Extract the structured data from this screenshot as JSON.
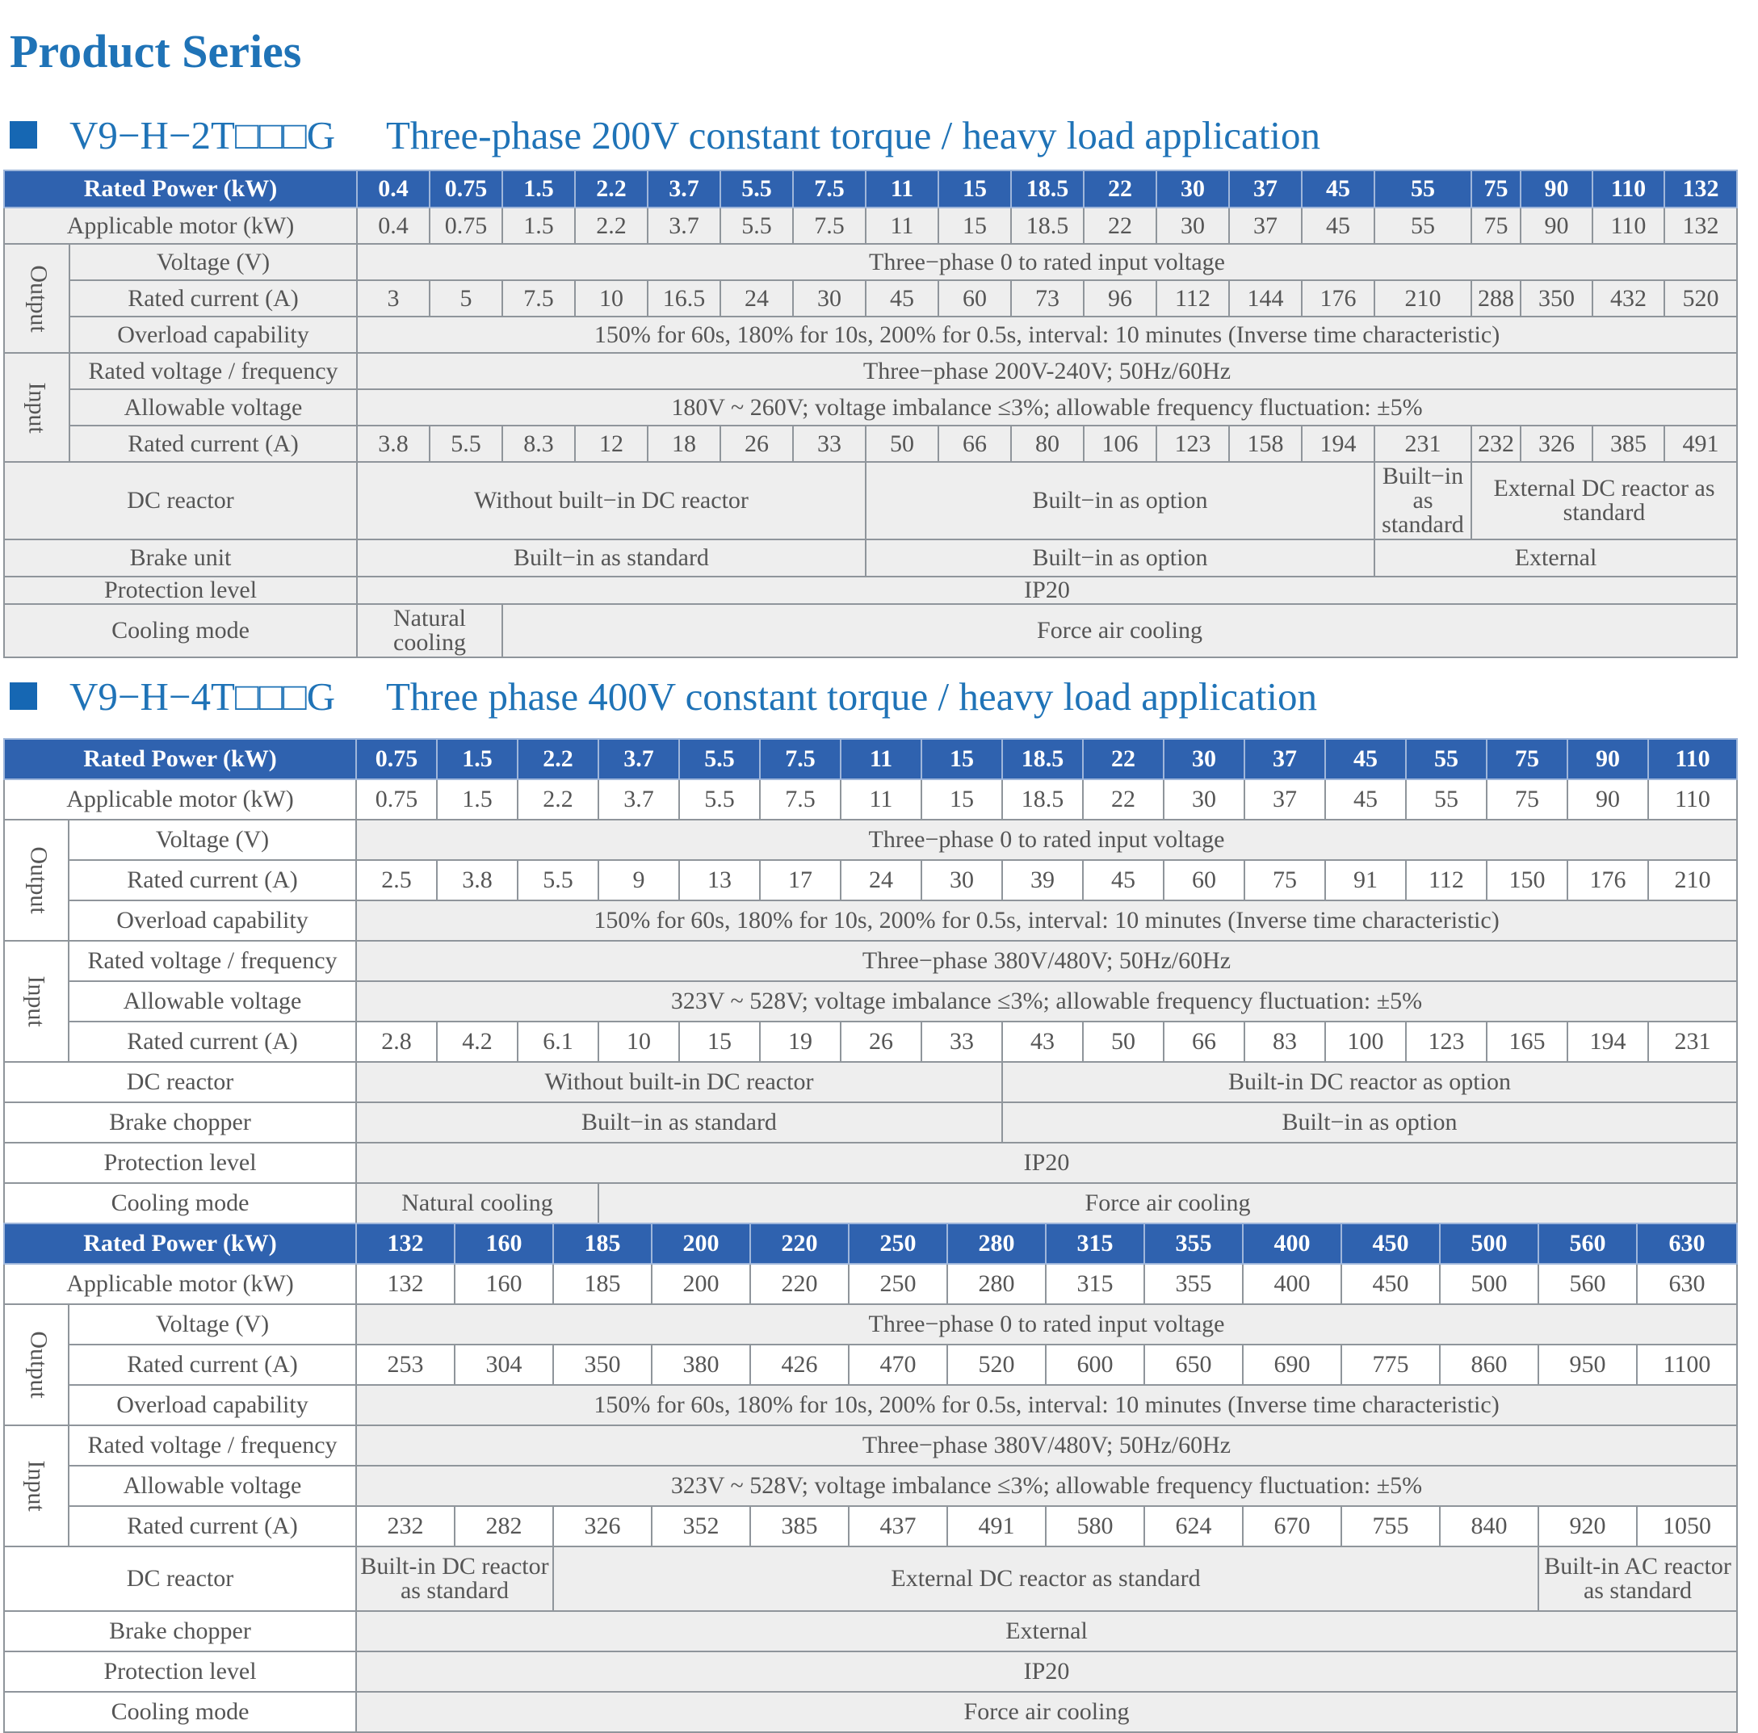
{
  "page_title": "Product Series",
  "section1": {
    "model": "V9−H−2T□□□G",
    "title": "Three-phase 200V constant torque / heavy load application",
    "rated_power_label": "Rated Power (kW)",
    "rated_power": [
      "0.4",
      "0.75",
      "1.5",
      "2.2",
      "3.7",
      "5.5",
      "7.5",
      "11",
      "15",
      "18.5",
      "22",
      "30",
      "37",
      "45",
      "55",
      "75",
      "90",
      "110",
      "132"
    ],
    "applicable_motor_label": "Applicable motor (kW)",
    "applicable_motor": [
      "0.4",
      "0.75",
      "1.5",
      "2.2",
      "3.7",
      "5.5",
      "7.5",
      "11",
      "15",
      "18.5",
      "22",
      "30",
      "37",
      "45",
      "55",
      "75",
      "90",
      "110",
      "132"
    ],
    "output_label": "Output",
    "voltage_label": "Voltage (V)",
    "voltage_value": "Three−phase 0 to rated input voltage",
    "output_current_label": "Rated current (A)",
    "output_current": [
      "3",
      "5",
      "7.5",
      "10",
      "16.5",
      "24",
      "30",
      "45",
      "60",
      "73",
      "96",
      "112",
      "144",
      "176",
      "210",
      "288",
      "350",
      "432",
      "520"
    ],
    "overload_label": "Overload capability",
    "overload_value": "150% for 60s, 180% for 10s, 200% for 0.5s, interval: 10 minutes (Inverse time characteristic)",
    "input_label": "Input",
    "rated_vf_label": "Rated voltage / frequency",
    "rated_vf_value": "Three−phase 200V-240V; 50Hz/60Hz",
    "allowable_label": "Allowable voltage",
    "allowable_value": "180V ~ 260V; voltage imbalance ≤3%; allowable frequency fluctuation: ±5%",
    "input_current_label": "Rated current (A)",
    "input_current": [
      "3.8",
      "5.5",
      "8.3",
      "12",
      "18",
      "26",
      "33",
      "50",
      "66",
      "80",
      "106",
      "123",
      "158",
      "194",
      "231",
      "232",
      "326",
      "385",
      "491"
    ],
    "dc_reactor_label": "DC reactor",
    "dc_reactor": [
      "Without built−in DC reactor",
      "Built−in as option",
      "Built−in as standard",
      "External DC reactor as standard"
    ],
    "brake_label": "Brake unit",
    "brake": [
      "Built−in as standard",
      "Built−in as option",
      "External"
    ],
    "protection_label": "Protection level",
    "protection_value": "IP20",
    "cooling_label": "Cooling mode",
    "cooling": [
      "Natural cooling",
      "Force air cooling"
    ]
  },
  "section2": {
    "model": "V9−H−4T□□□G",
    "title": "Three phase 400V constant torque / heavy load application",
    "rated_power_label": "Rated Power (kW)",
    "rated_power": [
      "0.75",
      "1.5",
      "2.2",
      "3.7",
      "5.5",
      "7.5",
      "11",
      "15",
      "18.5",
      "22",
      "30",
      "37",
      "45",
      "55",
      "75",
      "90",
      "110"
    ],
    "applicable_motor_label": "Applicable motor (kW)",
    "applicable_motor": [
      "0.75",
      "1.5",
      "2.2",
      "3.7",
      "5.5",
      "7.5",
      "11",
      "15",
      "18.5",
      "22",
      "30",
      "37",
      "45",
      "55",
      "75",
      "90",
      "110"
    ],
    "output_label": "Output",
    "voltage_label": "Voltage (V)",
    "voltage_value": "Three−phase 0 to rated input voltage",
    "output_current_label": "Rated current (A)",
    "output_current": [
      "2.5",
      "3.8",
      "5.5",
      "9",
      "13",
      "17",
      "24",
      "30",
      "39",
      "45",
      "60",
      "75",
      "91",
      "112",
      "150",
      "176",
      "210"
    ],
    "overload_label": "Overload capability",
    "overload_value": "150% for 60s, 180% for 10s, 200% for 0.5s, interval: 10 minutes (Inverse time characteristic)",
    "input_label": "Input",
    "rated_vf_label": "Rated voltage / frequency",
    "rated_vf_value": "Three−phase 380V/480V; 50Hz/60Hz",
    "allowable_label": "Allowable voltage",
    "allowable_value": "323V ~ 528V; voltage imbalance ≤3%; allowable frequency fluctuation: ±5%",
    "input_current_label": "Rated current (A)",
    "input_current": [
      "2.8",
      "4.2",
      "6.1",
      "10",
      "15",
      "19",
      "26",
      "33",
      "43",
      "50",
      "66",
      "83",
      "100",
      "123",
      "165",
      "194",
      "231"
    ],
    "dc_reactor_label": "DC reactor",
    "dc_reactor": [
      "Without built-in DC reactor",
      "Built-in DC reactor as option"
    ],
    "brake_label": "Brake chopper",
    "brake": [
      "Built−in as standard",
      "Built−in as option"
    ],
    "protection_label": "Protection level",
    "protection_value": "IP20",
    "cooling_label": "Cooling mode",
    "cooling": [
      "Natural cooling",
      "Force air cooling"
    ]
  },
  "section3": {
    "rated_power_label": "Rated Power (kW)",
    "rated_power": [
      "132",
      "160",
      "185",
      "200",
      "220",
      "250",
      "280",
      "315",
      "355",
      "400",
      "450",
      "500",
      "560",
      "630"
    ],
    "applicable_motor_label": "Applicable motor (kW)",
    "applicable_motor": [
      "132",
      "160",
      "185",
      "200",
      "220",
      "250",
      "280",
      "315",
      "355",
      "400",
      "450",
      "500",
      "560",
      "630"
    ],
    "output_label": "Output",
    "voltage_label": "Voltage (V)",
    "voltage_value": "Three−phase 0 to rated input voltage",
    "output_current_label": "Rated current (A)",
    "output_current": [
      "253",
      "304",
      "350",
      "380",
      "426",
      "470",
      "520",
      "600",
      "650",
      "690",
      "775",
      "860",
      "950",
      "1100"
    ],
    "overload_label": "Overload capability",
    "overload_value": "150% for 60s, 180% for 10s, 200% for 0.5s, interval: 10 minutes (Inverse time characteristic)",
    "input_label": "Input",
    "rated_vf_label": "Rated voltage / frequency",
    "rated_vf_value": "Three−phase 380V/480V; 50Hz/60Hz",
    "allowable_label": "Allowable voltage",
    "allowable_value": "323V ~ 528V; voltage imbalance ≤3%; allowable frequency fluctuation: ±5%",
    "input_current_label": "Rated current (A)",
    "input_current": [
      "232",
      "282",
      "326",
      "352",
      "385",
      "437",
      "491",
      "580",
      "624",
      "670",
      "755",
      "840",
      "920",
      "1050"
    ],
    "dc_reactor_label": "DC reactor",
    "dc_reactor": [
      "Built-in DC reactor as standard",
      "External DC reactor as standard",
      "Built-in AC reactor as standard"
    ],
    "brake_label": "Brake chopper",
    "brake_value": "External",
    "protection_label": "Protection level",
    "protection_value": "IP20",
    "cooling_label": "Cooling mode",
    "cooling_value": "Force air cooling"
  }
}
